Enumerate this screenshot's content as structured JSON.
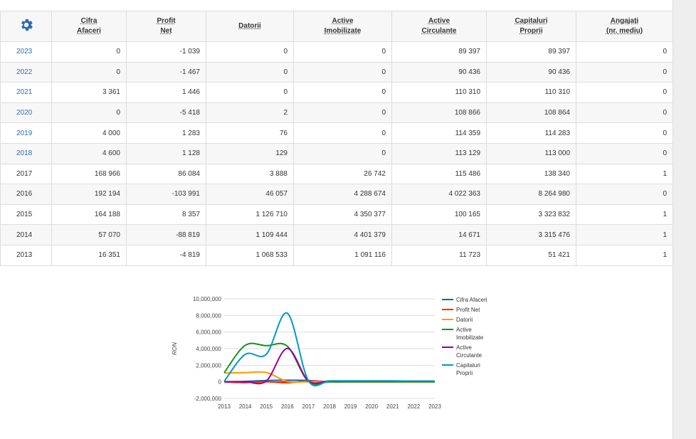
{
  "table": {
    "settings_icon": "gear-icon",
    "headers": [
      {
        "line1": "Cifra",
        "line2": "Afaceri"
      },
      {
        "line1": "Profit",
        "line2": "Net"
      },
      {
        "line1": "Datorii",
        "line2": ""
      },
      {
        "line1": "Active",
        "line2": "Imobilizate"
      },
      {
        "line1": "Active",
        "line2": "Circulante"
      },
      {
        "line1": "Capitaluri",
        "line2": "Proprii"
      },
      {
        "line1": "Angajați",
        "line2": "(nr. mediu)"
      }
    ],
    "rows": [
      {
        "year": "2023",
        "link": true,
        "cells": [
          "0",
          "-1 039",
          "0",
          "0",
          "89 397",
          "89 397",
          "0"
        ]
      },
      {
        "year": "2022",
        "link": true,
        "cells": [
          "0",
          "-1 467",
          "0",
          "0",
          "90 436",
          "90 436",
          "0"
        ]
      },
      {
        "year": "2021",
        "link": true,
        "cells": [
          "3 361",
          "1 446",
          "0",
          "0",
          "110 310",
          "110 310",
          "0"
        ]
      },
      {
        "year": "2020",
        "link": true,
        "cells": [
          "0",
          "-5 418",
          "2",
          "0",
          "108 866",
          "108 864",
          "0"
        ]
      },
      {
        "year": "2019",
        "link": true,
        "cells": [
          "4 000",
          "1 283",
          "76",
          "0",
          "114 359",
          "114 283",
          "0"
        ]
      },
      {
        "year": "2018",
        "link": true,
        "cells": [
          "4 600",
          "1 128",
          "129",
          "0",
          "113 129",
          "113 000",
          "0"
        ]
      },
      {
        "year": "2017",
        "link": false,
        "cells": [
          "168 966",
          "86 084",
          "3 888",
          "26 742",
          "115 486",
          "138 340",
          "1"
        ]
      },
      {
        "year": "2016",
        "link": false,
        "cells": [
          "192 194",
          "-103 991",
          "46 057",
          "4 288 674",
          "4 022 363",
          "8 264 980",
          "0"
        ]
      },
      {
        "year": "2015",
        "link": false,
        "cells": [
          "164 188",
          "8 357",
          "1 126 710",
          "4 350 377",
          "100 165",
          "3 323 832",
          "1"
        ]
      },
      {
        "year": "2014",
        "link": false,
        "cells": [
          "57 070",
          "-88 819",
          "1 109 444",
          "4 401 379",
          "14 671",
          "3 315 476",
          "1"
        ]
      },
      {
        "year": "2013",
        "link": false,
        "cells": [
          "16 351",
          "-4 819",
          "1 068 533",
          "1 091 116",
          "11 723",
          "51 421",
          "1"
        ]
      }
    ]
  },
  "chart_data": {
    "type": "line",
    "ylabel": "RON",
    "ylim": [
      -2000000,
      10000000
    ],
    "yticks": [
      -2000000,
      0,
      2000000,
      4000000,
      6000000,
      8000000,
      10000000
    ],
    "ytick_labels": [
      "-2,000,000",
      "0",
      "2,000,000",
      "4,000,000",
      "6,000,000",
      "8,000,000",
      "10,000,000"
    ],
    "categories": [
      "2013",
      "2014",
      "2015",
      "2016",
      "2017",
      "2018",
      "2019",
      "2020",
      "2021",
      "2022",
      "2023"
    ],
    "grid": true,
    "legend_position": "right",
    "series": [
      {
        "name": "Cifra Afaceri",
        "color": "#1f5fa8",
        "values": [
          16351,
          57070,
          164188,
          192194,
          168966,
          4600,
          4000,
          0,
          3361,
          0,
          0
        ]
      },
      {
        "name": "Profit Net",
        "color": "#ff2a00",
        "values": [
          -4819,
          -88819,
          8357,
          -103991,
          86084,
          1128,
          1283,
          -5418,
          1446,
          -1467,
          -1039
        ]
      },
      {
        "name": "Datorii",
        "color": "#ff9900",
        "values": [
          1068533,
          1109444,
          1126710,
          46057,
          3888,
          129,
          76,
          2,
          0,
          0,
          0
        ]
      },
      {
        "name": "Active Imobilizate",
        "label_lines": [
          "Active",
          "Imobilizate"
        ],
        "color": "#109618",
        "values": [
          1091116,
          4401379,
          4350377,
          4288674,
          26742,
          0,
          0,
          0,
          0,
          0,
          0
        ]
      },
      {
        "name": "Active Circulante",
        "label_lines": [
          "Active",
          "Circulante"
        ],
        "color": "#990099",
        "values": [
          11723,
          14671,
          100165,
          4022363,
          115486,
          113129,
          114359,
          108866,
          110310,
          90436,
          89397
        ]
      },
      {
        "name": "Capitaluri Proprii",
        "label_lines": [
          "Capitaluri",
          "Proprii"
        ],
        "color": "#0099c6",
        "values": [
          51421,
          3315476,
          3323832,
          8264980,
          138340,
          113000,
          114283,
          108864,
          110310,
          90436,
          89397
        ]
      }
    ]
  }
}
